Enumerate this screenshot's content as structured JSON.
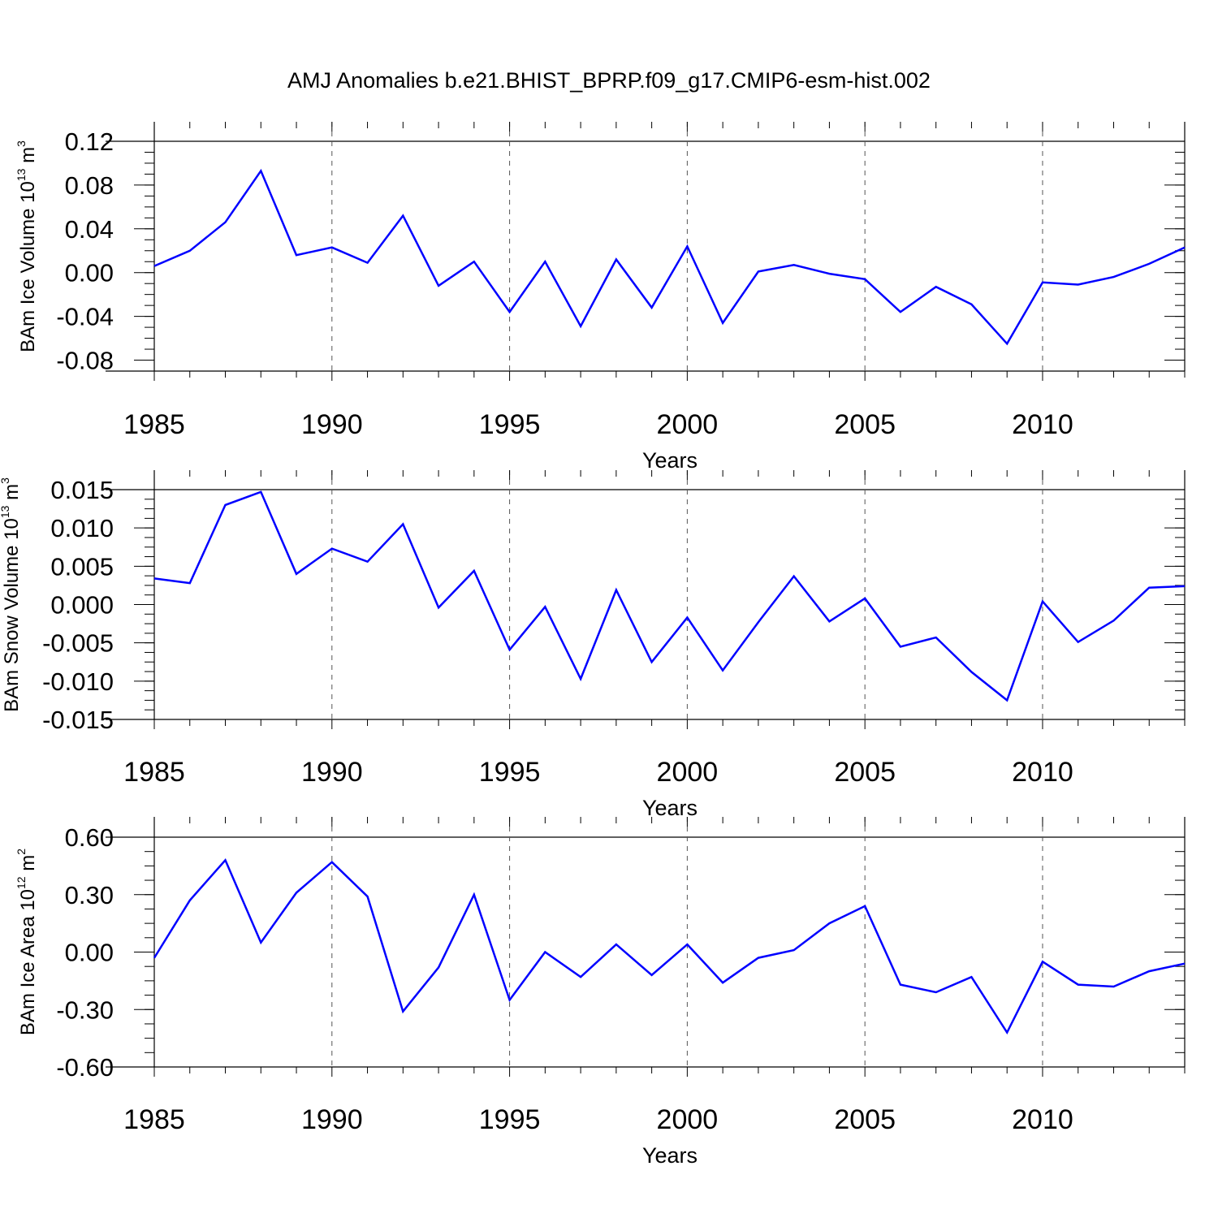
{
  "title": "AMJ Anomalies b.e21.BHIST_BPRP.f09_g17.CMIP6-esm-hist.002",
  "chart_data": [
    {
      "type": "line",
      "ylabel_base": "BAm Ice Volume 10",
      "ylabel_exp": "13",
      "ylabel_unit": " m",
      "ylabel_unit_exp": "3",
      "xlabel": "Years",
      "xlim": [
        1985,
        2014
      ],
      "ylim": [
        -0.09,
        0.12
      ],
      "yticks": [
        "0.12",
        "0.08",
        "0.04",
        "0.00",
        "-0.04",
        "-0.08"
      ],
      "ytick_values": [
        0.12,
        0.08,
        0.04,
        0.0,
        -0.04,
        -0.08
      ],
      "xticks": [
        "1985",
        "1990",
        "1995",
        "2000",
        "2005",
        "2010"
      ],
      "line_color": "#0000ff",
      "grid": "dashed vertical lines at 1990, 1995, 2000, 2005, 2010",
      "x": [
        1985,
        1986,
        1987,
        1988,
        1989,
        1990,
        1991,
        1992,
        1993,
        1994,
        1995,
        1996,
        1997,
        1998,
        1999,
        2000,
        2001,
        2002,
        2003,
        2004,
        2005,
        2006,
        2007,
        2008,
        2009,
        2010,
        2011,
        2012,
        2013,
        2014
      ],
      "values": [
        0.006,
        0.02,
        0.046,
        0.093,
        0.016,
        0.023,
        0.009,
        0.052,
        -0.012,
        0.01,
        -0.036,
        0.01,
        -0.049,
        0.012,
        -0.032,
        0.024,
        -0.046,
        0.001,
        0.007,
        -0.001,
        -0.006,
        -0.036,
        -0.013,
        -0.029,
        -0.065,
        -0.009,
        -0.011,
        -0.004,
        0.008,
        0.023
      ]
    },
    {
      "type": "line",
      "ylabel_base": "BAm Snow Volume 10",
      "ylabel_exp": "13",
      "ylabel_unit": " m",
      "ylabel_unit_exp": "3",
      "xlabel": "Years",
      "xlim": [
        1985,
        2014
      ],
      "ylim": [
        -0.015,
        0.015
      ],
      "yticks": [
        "0.015",
        "0.010",
        "0.005",
        "0.000",
        "-0.005",
        "-0.010",
        "-0.015"
      ],
      "ytick_values": [
        0.015,
        0.01,
        0.005,
        0.0,
        -0.005,
        -0.01,
        -0.015
      ],
      "xticks": [
        "1985",
        "1990",
        "1995",
        "2000",
        "2005",
        "2010"
      ],
      "line_color": "#0000ff",
      "grid": "dashed vertical lines at 1990, 1995, 2000, 2005, 2010",
      "x": [
        1985,
        1986,
        1987,
        1988,
        1989,
        1990,
        1991,
        1992,
        1993,
        1994,
        1995,
        1996,
        1997,
        1998,
        1999,
        2000,
        2001,
        2002,
        2003,
        2004,
        2005,
        2006,
        2007,
        2008,
        2009,
        2010,
        2011,
        2012,
        2013,
        2014
      ],
      "values": [
        0.0034,
        0.0028,
        0.013,
        0.0147,
        0.004,
        0.0073,
        0.0056,
        0.0105,
        -0.0004,
        0.0044,
        -0.0059,
        -0.0003,
        -0.0097,
        0.0019,
        -0.0075,
        -0.0017,
        -0.0086,
        -0.0023,
        0.0037,
        -0.0022,
        0.0008,
        -0.0055,
        -0.0043,
        -0.0088,
        -0.0125,
        0.0004,
        -0.0049,
        -0.0021,
        0.0022,
        0.0024
      ]
    },
    {
      "type": "line",
      "ylabel_base": "BAm Ice Area 10",
      "ylabel_exp": "12",
      "ylabel_unit": " m",
      "ylabel_unit_exp": "2",
      "xlabel": "Years",
      "xlim": [
        1985,
        2014
      ],
      "ylim": [
        -0.6,
        0.6
      ],
      "yticks": [
        "0.60",
        "0.30",
        "0.00",
        "-0.30",
        "-0.60"
      ],
      "ytick_values": [
        0.6,
        0.3,
        0.0,
        -0.3,
        -0.6
      ],
      "xticks": [
        "1985",
        "1990",
        "1995",
        "2000",
        "2005",
        "2010"
      ],
      "line_color": "#0000ff",
      "grid": "dashed vertical lines at 1990, 1995, 2000, 2005, 2010",
      "x": [
        1985,
        1986,
        1987,
        1988,
        1989,
        1990,
        1991,
        1992,
        1993,
        1994,
        1995,
        1996,
        1997,
        1998,
        1999,
        2000,
        2001,
        2002,
        2003,
        2004,
        2005,
        2006,
        2007,
        2008,
        2009,
        2010,
        2011,
        2012,
        2013,
        2014
      ],
      "values": [
        -0.03,
        0.27,
        0.48,
        0.05,
        0.31,
        0.47,
        0.29,
        -0.31,
        -0.08,
        0.3,
        -0.25,
        0.0,
        -0.13,
        0.04,
        -0.12,
        0.04,
        -0.16,
        -0.03,
        0.01,
        0.15,
        0.24,
        -0.17,
        -0.21,
        -0.13,
        -0.42,
        -0.05,
        -0.17,
        -0.18,
        -0.1,
        -0.06
      ]
    }
  ]
}
